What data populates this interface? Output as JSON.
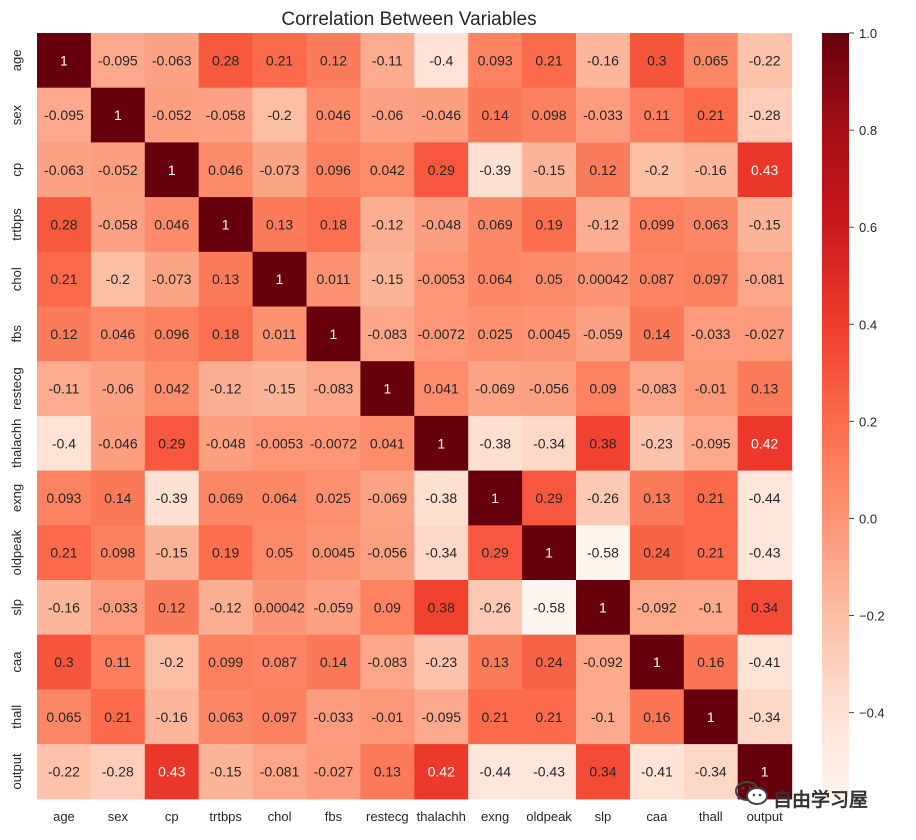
{
  "chart_data": {
    "type": "heatmap",
    "title": "Correlation Between Variables",
    "xlabel": "",
    "ylabel": "",
    "variables": [
      "age",
      "sex",
      "cp",
      "trtbps",
      "chol",
      "fbs",
      "restecg",
      "thalachh",
      "exng",
      "oldpeak",
      "slp",
      "caa",
      "thall",
      "output"
    ],
    "matrix": [
      [
        1,
        -0.095,
        -0.063,
        0.28,
        0.21,
        0.12,
        -0.11,
        -0.4,
        0.093,
        0.21,
        -0.16,
        0.3,
        0.065,
        -0.22
      ],
      [
        -0.095,
        1,
        -0.052,
        -0.058,
        -0.2,
        0.046,
        -0.06,
        -0.046,
        0.14,
        0.098,
        -0.033,
        0.11,
        0.21,
        -0.28
      ],
      [
        -0.063,
        -0.052,
        1,
        0.046,
        -0.073,
        0.096,
        0.042,
        0.29,
        -0.39,
        -0.15,
        0.12,
        -0.2,
        -0.16,
        0.43
      ],
      [
        0.28,
        -0.058,
        0.046,
        1,
        0.13,
        0.18,
        -0.12,
        -0.048,
        0.069,
        0.19,
        -0.12,
        0.099,
        0.063,
        -0.15
      ],
      [
        0.21,
        -0.2,
        -0.073,
        0.13,
        1,
        0.011,
        -0.15,
        -0.0053,
        0.064,
        0.05,
        0.00042,
        0.087,
        0.097,
        -0.081
      ],
      [
        0.12,
        0.046,
        0.096,
        0.18,
        0.011,
        1,
        -0.083,
        -0.0072,
        0.025,
        0.0045,
        -0.059,
        0.14,
        -0.033,
        -0.027
      ],
      [
        -0.11,
        -0.06,
        0.042,
        -0.12,
        -0.15,
        -0.083,
        1,
        0.041,
        -0.069,
        -0.056,
        0.09,
        -0.083,
        -0.01,
        0.13
      ],
      [
        -0.4,
        -0.046,
        0.29,
        -0.048,
        -0.0053,
        -0.0072,
        0.041,
        1,
        -0.38,
        -0.34,
        0.38,
        -0.23,
        -0.095,
        0.42
      ],
      [
        0.093,
        0.14,
        -0.39,
        0.069,
        0.064,
        0.025,
        -0.069,
        -0.38,
        1,
        0.29,
        -0.26,
        0.13,
        0.21,
        -0.44
      ],
      [
        0.21,
        0.098,
        -0.15,
        0.19,
        0.05,
        0.0045,
        -0.056,
        -0.34,
        0.29,
        1,
        -0.58,
        0.24,
        0.21,
        -0.43
      ],
      [
        -0.16,
        -0.033,
        0.12,
        -0.12,
        0.00042,
        -0.059,
        0.09,
        0.38,
        -0.26,
        -0.58,
        1,
        -0.092,
        -0.1,
        0.34
      ],
      [
        0.3,
        0.11,
        -0.2,
        0.099,
        0.087,
        0.14,
        -0.083,
        -0.23,
        0.13,
        0.24,
        -0.092,
        1,
        0.16,
        -0.41
      ],
      [
        0.065,
        0.21,
        -0.16,
        0.063,
        0.097,
        -0.033,
        -0.01,
        -0.095,
        0.21,
        0.21,
        -0.1,
        0.16,
        1,
        -0.34
      ],
      [
        -0.22,
        -0.28,
        0.43,
        -0.15,
        -0.081,
        -0.027,
        0.13,
        0.42,
        -0.44,
        -0.43,
        0.34,
        -0.41,
        -0.34,
        1
      ]
    ],
    "colorbar": {
      "range": [
        -0.58,
        1.0
      ],
      "ticks": [
        -0.4,
        -0.2,
        0.0,
        0.2,
        0.4,
        0.6,
        0.8,
        1.0
      ],
      "tick_labels": [
        "−0.4",
        "−0.2",
        "0.0",
        "0.2",
        "0.4",
        "0.6",
        "0.8",
        "1.0"
      ],
      "colormap": "Reds",
      "colors": [
        "#fff5f0",
        "#fee0d2",
        "#fcbba1",
        "#fc9272",
        "#fb6a4a",
        "#ef3b2c",
        "#cb181d",
        "#a50f15",
        "#67000d"
      ]
    },
    "grid": false
  },
  "watermark": {
    "text": "自由学习屋",
    "icon": "wechat-icon"
  }
}
